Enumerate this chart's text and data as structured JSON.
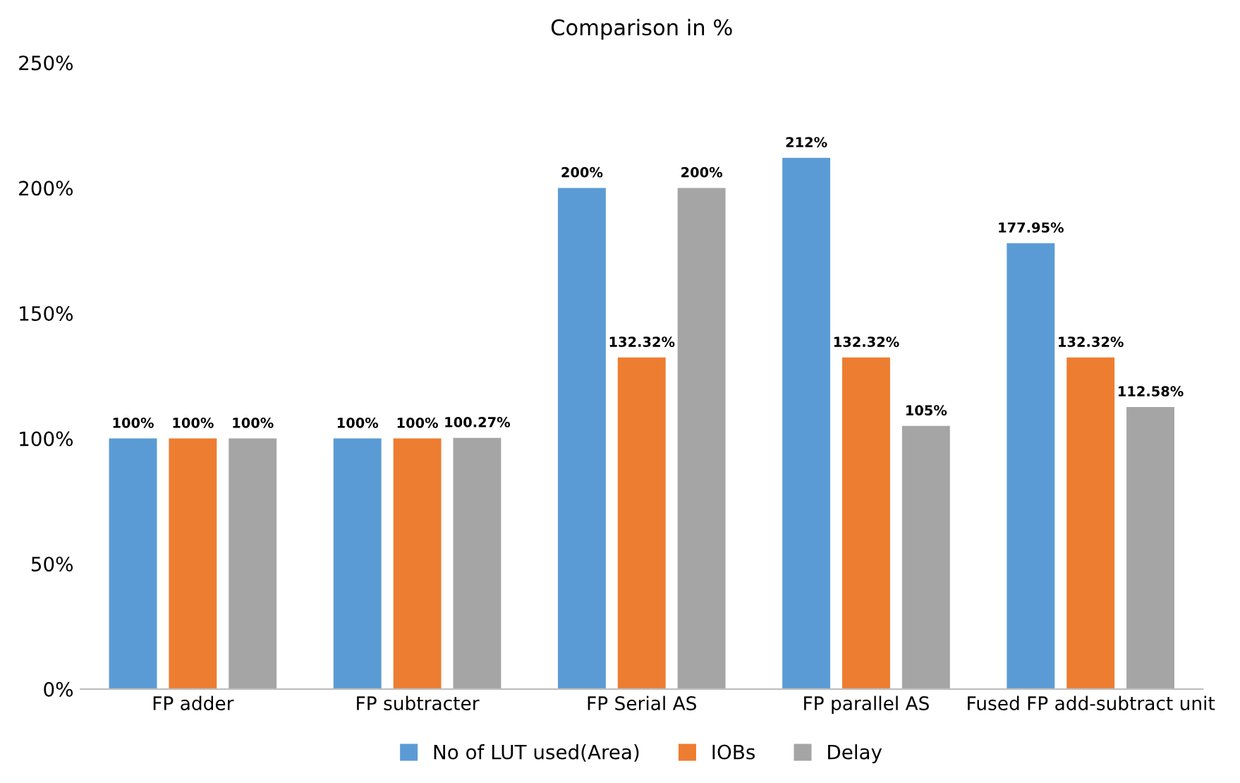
{
  "chart_data": {
    "type": "bar",
    "title": "Comparison in %",
    "categories": [
      "FP adder",
      "FP subtracter",
      "FP Serial AS",
      "FP parallel AS",
      "Fused FP add-subtract unit"
    ],
    "series": [
      {
        "name": "No of LUT used(Area)",
        "color": "#5b9bd5",
        "values": [
          100,
          100,
          200,
          212,
          177.95
        ],
        "value_labels": [
          "100%",
          "100%",
          "200%",
          "212%",
          "177.95%"
        ]
      },
      {
        "name": "IOBs",
        "color": "#ed7d31",
        "values": [
          100,
          100,
          132.32,
          132.32,
          132.32
        ],
        "value_labels": [
          "100%",
          "100%",
          "132.32%",
          "132.32%",
          "132.32%"
        ]
      },
      {
        "name": "Delay",
        "color": "#a5a5a5",
        "values": [
          100,
          100.27,
          200,
          105,
          112.58
        ],
        "value_labels": [
          "100%",
          "100.27%",
          "200%",
          "105%",
          "112.58%"
        ]
      }
    ],
    "ylim": [
      0,
      250
    ],
    "yticks": [
      {
        "value": 0,
        "label": "0%"
      },
      {
        "value": 50,
        "label": "50%"
      },
      {
        "value": 100,
        "label": "100%"
      },
      {
        "value": 150,
        "label": "150%"
      },
      {
        "value": 200,
        "label": "200%"
      },
      {
        "value": 250,
        "label": "250%"
      }
    ],
    "grid": false,
    "legend": "bottom"
  }
}
